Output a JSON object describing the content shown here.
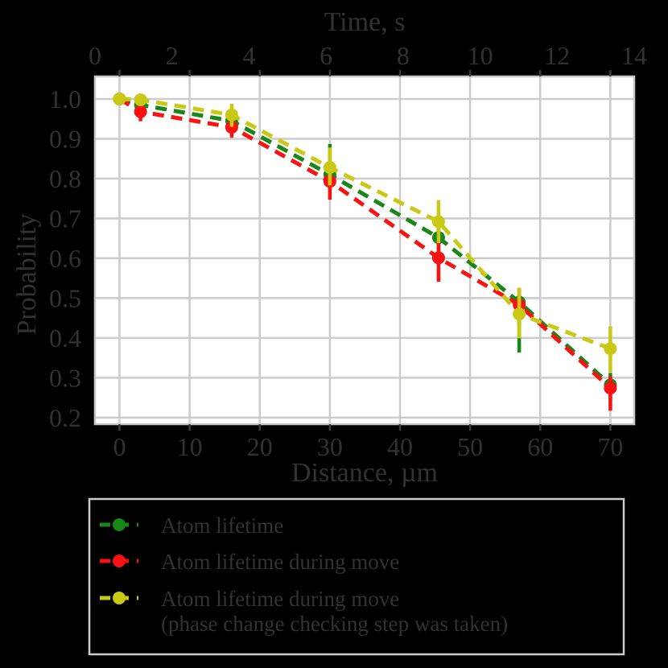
{
  "figure": {
    "background_color": "#000000",
    "plot_bg_color": "#ffffff",
    "text_color": "#323232",
    "grid_color": "#cccccc",
    "spine_color": "#c8c8c8",
    "tick_mark_color": "#3c3c3c",
    "legend_border_color": "#cbcbcb"
  },
  "chart_data": {
    "type": "line",
    "title": "",
    "grid": true,
    "legend_position": "below-plot",
    "top_axis": {
      "label": "Time, s",
      "tick_labels": [
        "0",
        "2",
        "4",
        "6",
        "8",
        "10",
        "12",
        "14"
      ],
      "tick_values": [
        0,
        2,
        4,
        6,
        8,
        10,
        12,
        14
      ],
      "lim": [
        0,
        14
      ]
    },
    "bottom_axis": {
      "label": "Distance, µm",
      "tick_labels": [
        "0",
        "10",
        "20",
        "30",
        "40",
        "50",
        "60",
        "70"
      ],
      "tick_values": [
        0,
        10,
        20,
        30,
        40,
        50,
        60,
        70
      ],
      "lim": [
        -3.5,
        73.4
      ]
    },
    "y_axis": {
      "label": "Probability",
      "tick_labels": [
        "1.0",
        "0.9",
        "0.8",
        "0.7",
        "0.6",
        "0.5",
        "0.4",
        "0.3",
        "0.2"
      ],
      "tick_values": [
        1.0,
        0.9,
        0.8,
        0.7,
        0.6,
        0.5,
        0.4,
        0.3,
        0.2
      ],
      "lim": [
        0.1835,
        1.0565
      ]
    },
    "x_um": [
      0,
      3,
      16,
      30,
      45.5,
      57,
      70
    ],
    "series": [
      {
        "name": "Atom lifetime",
        "color": "#178717",
        "linestyle": "dashed",
        "marker": "circle",
        "y": [
          1.0,
          0.985,
          0.945,
          0.81,
          0.652,
          0.49,
          0.282
        ],
        "err_lo": [
          0.004,
          0.012,
          0.02,
          0.04,
          0.045,
          0.127,
          0.04
        ],
        "err_hi": [
          0.004,
          0.01,
          0.02,
          0.077,
          0.045,
          0.035,
          0.03
        ]
      },
      {
        "name": "Atom lifetime during move",
        "color": "#fb1111",
        "linestyle": "dashed",
        "marker": "circle",
        "y": [
          1.0,
          0.968,
          0.929,
          0.793,
          0.601,
          0.483,
          0.274
        ],
        "err_lo": [
          0.004,
          0.024,
          0.026,
          0.046,
          0.06,
          0.05,
          0.057
        ],
        "err_hi": [
          0.004,
          0.015,
          0.02,
          0.03,
          0.04,
          0.04,
          0.03
        ]
      },
      {
        "name": "Atom lifetime during move (phase change checking step was taken)",
        "color": "#c9c915",
        "linestyle": "dashed",
        "marker": "circle",
        "y": [
          1.0,
          0.998,
          0.96,
          0.828,
          0.692,
          0.46,
          0.373
        ],
        "err_lo": [
          0.004,
          0.006,
          0.03,
          0.045,
          0.054,
          0.061,
          0.059
        ],
        "err_hi": [
          0.004,
          0.006,
          0.028,
          0.05,
          0.054,
          0.066,
          0.056
        ]
      }
    ]
  },
  "legend": {
    "entries": [
      {
        "color": "#178717",
        "label_lines": [
          "Atom lifetime"
        ]
      },
      {
        "color": "#fb1111",
        "label_lines": [
          "Atom lifetime during move"
        ]
      },
      {
        "color": "#c9c915",
        "label_lines": [
          "Atom lifetime during move",
          "(phase change checking step was taken)"
        ]
      }
    ]
  }
}
